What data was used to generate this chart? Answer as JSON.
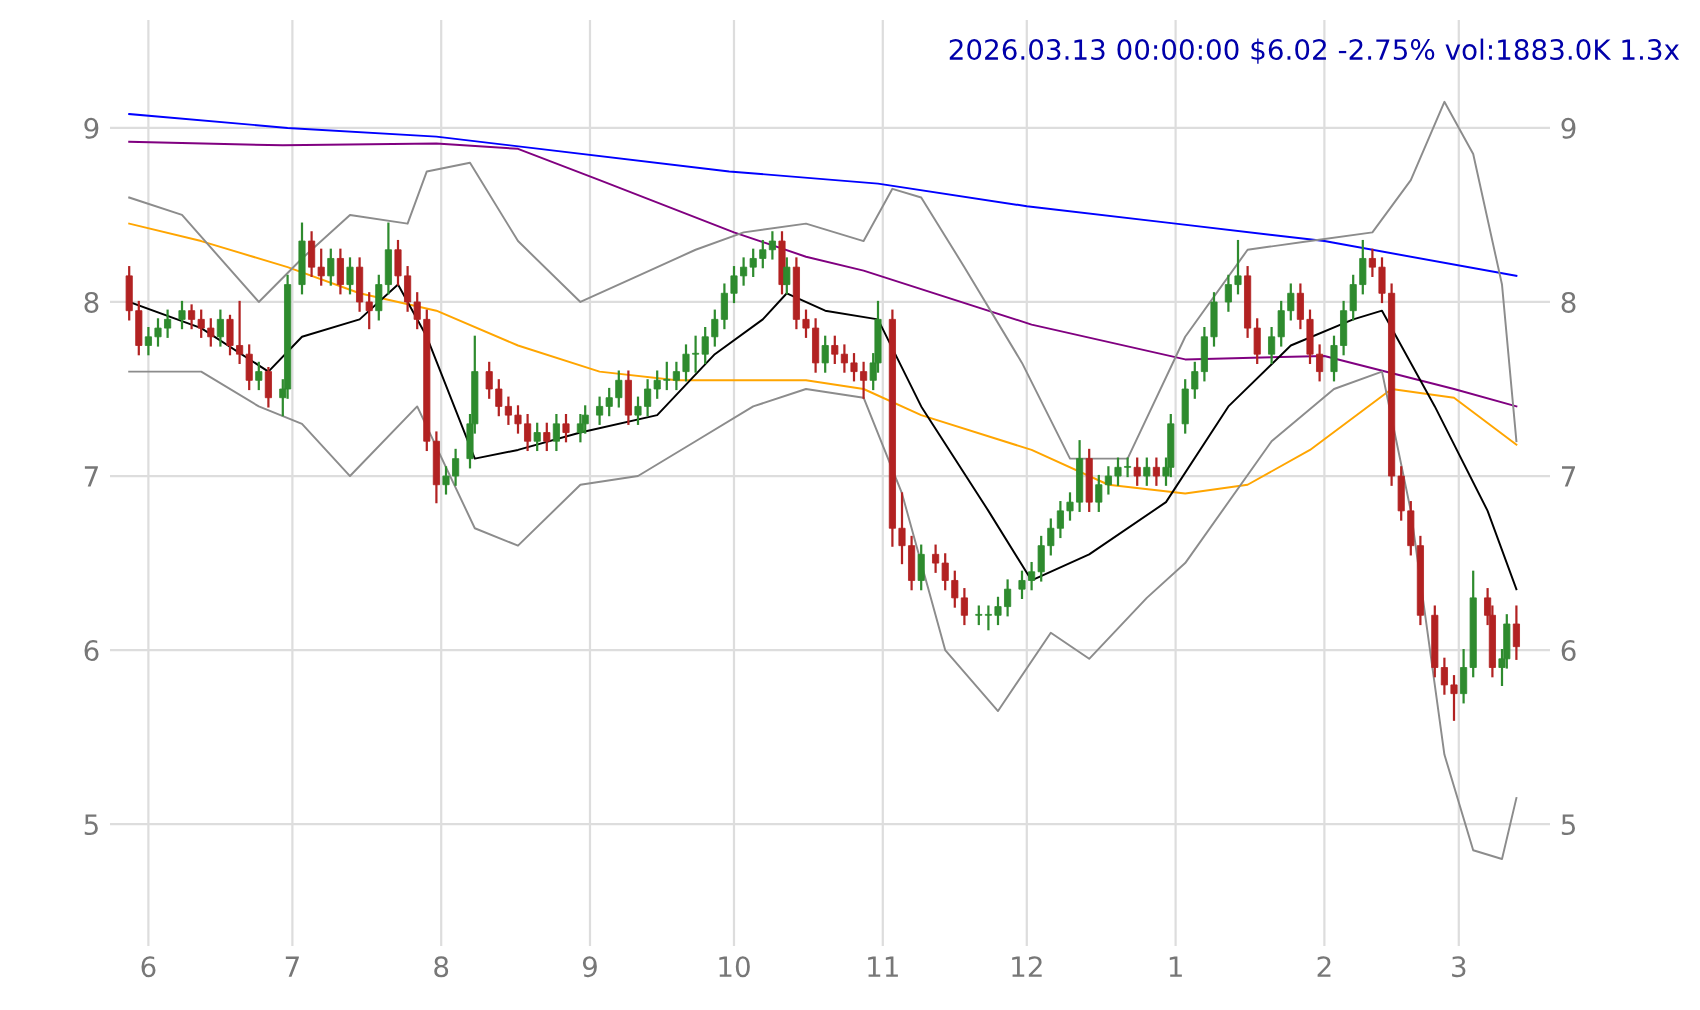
{
  "chart_data": {
    "type": "candlestick",
    "title": "2026.03.13 00:00:00 $6.02 -2.75% vol:1883.0K 1.3x",
    "x": [
      "2025-05-28",
      "2025-05-30",
      "2025-06-01",
      "2025-06-03",
      "2025-06-05",
      "2025-06-08",
      "2025-06-10",
      "2025-06-12",
      "2025-06-14",
      "2025-06-16",
      "2025-06-18",
      "2025-06-20",
      "2025-06-22",
      "2025-06-24",
      "2025-06-26",
      "2025-06-29",
      "2025-06-30",
      "2025-07-03",
      "2025-07-05",
      "2025-07-07",
      "2025-07-09",
      "2025-07-11",
      "2025-07-13",
      "2025-07-15",
      "2025-07-17",
      "2025-07-19",
      "2025-07-21",
      "2025-07-23",
      "2025-07-25",
      "2025-07-27",
      "2025-07-29",
      "2025-07-31",
      "2025-08-02",
      "2025-08-04",
      "2025-08-07",
      "2025-08-08",
      "2025-08-11",
      "2025-08-13",
      "2025-08-15",
      "2025-08-17",
      "2025-08-19",
      "2025-08-21",
      "2025-08-23",
      "2025-08-25",
      "2025-08-27",
      "2025-08-30",
      "2025-08-31",
      "2025-09-03",
      "2025-09-05",
      "2025-09-07",
      "2025-09-09",
      "2025-09-11",
      "2025-09-13",
      "2025-09-15",
      "2025-09-17",
      "2025-09-19",
      "2025-09-21",
      "2025-09-23",
      "2025-09-25",
      "2025-09-27",
      "2025-09-29",
      "2025-10-01",
      "2025-10-03",
      "2025-10-05",
      "2025-10-07",
      "2025-10-09",
      "2025-10-11",
      "2025-10-12",
      "2025-10-14",
      "2025-10-16",
      "2025-10-18",
      "2025-10-20",
      "2025-10-22",
      "2025-10-24",
      "2025-10-26",
      "2025-10-28",
      "2025-10-30",
      "2025-10-31",
      "2025-11-03",
      "2025-11-05",
      "2025-11-07",
      "2025-11-09",
      "2025-11-12",
      "2025-11-14",
      "2025-11-16",
      "2025-11-18",
      "2025-11-21",
      "2025-11-23",
      "2025-11-25",
      "2025-11-27",
      "2025-11-30",
      "2025-12-02",
      "2025-12-04",
      "2025-12-06",
      "2025-12-08",
      "2025-12-10",
      "2025-12-12",
      "2025-12-14",
      "2025-12-16",
      "2025-12-18",
      "2025-12-20",
      "2025-12-22",
      "2025-12-24",
      "2025-12-26",
      "2025-12-28",
      "2025-12-30",
      "2025-12-31",
      "2026-01-03",
      "2026-01-05",
      "2026-01-07",
      "2026-01-09",
      "2026-01-12",
      "2026-01-14",
      "2026-01-16",
      "2026-01-18",
      "2026-01-21",
      "2026-01-23",
      "2026-01-25",
      "2026-01-27",
      "2026-01-29",
      "2026-01-31",
      "2026-02-03",
      "2026-02-05",
      "2026-02-07",
      "2026-02-09",
      "2026-02-11",
      "2026-02-13",
      "2026-02-15",
      "2026-02-17",
      "2026-02-19",
      "2026-02-21",
      "2026-02-24",
      "2026-02-26",
      "2026-02-28",
      "2026-03-02",
      "2026-03-04",
      "2026-03-07",
      "2026-03-08",
      "2026-03-10",
      "2026-03-11",
      "2026-03-13"
    ],
    "ohlc": [
      [
        8.15,
        8.2,
        7.9,
        7.95
      ],
      [
        7.95,
        8.0,
        7.7,
        7.75
      ],
      [
        7.75,
        7.85,
        7.7,
        7.8
      ],
      [
        7.8,
        7.9,
        7.75,
        7.85
      ],
      [
        7.85,
        7.95,
        7.8,
        7.9
      ],
      [
        7.9,
        8.0,
        7.85,
        7.95
      ],
      [
        7.95,
        7.98,
        7.85,
        7.9
      ],
      [
        7.9,
        7.95,
        7.8,
        7.85
      ],
      [
        7.85,
        7.9,
        7.75,
        7.8
      ],
      [
        7.8,
        7.95,
        7.75,
        7.9
      ],
      [
        7.9,
        7.92,
        7.7,
        7.75
      ],
      [
        7.75,
        8.0,
        7.65,
        7.7
      ],
      [
        7.7,
        7.75,
        7.5,
        7.55
      ],
      [
        7.55,
        7.65,
        7.5,
        7.6
      ],
      [
        7.6,
        7.62,
        7.4,
        7.45
      ],
      [
        7.45,
        7.55,
        7.35,
        7.5
      ],
      [
        7.5,
        8.15,
        7.45,
        8.1
      ],
      [
        8.1,
        8.45,
        8.05,
        8.35
      ],
      [
        8.35,
        8.4,
        8.15,
        8.2
      ],
      [
        8.2,
        8.3,
        8.1,
        8.15
      ],
      [
        8.15,
        8.3,
        8.1,
        8.25
      ],
      [
        8.25,
        8.3,
        8.05,
        8.1
      ],
      [
        8.1,
        8.25,
        8.05,
        8.2
      ],
      [
        8.2,
        8.25,
        7.95,
        8.0
      ],
      [
        8.0,
        8.05,
        7.85,
        7.95
      ],
      [
        7.95,
        8.15,
        7.9,
        8.1
      ],
      [
        8.1,
        8.45,
        8.05,
        8.3
      ],
      [
        8.3,
        8.35,
        8.1,
        8.15
      ],
      [
        8.15,
        8.2,
        7.95,
        8.0
      ],
      [
        8.0,
        8.05,
        7.85,
        7.9
      ],
      [
        7.9,
        7.95,
        7.15,
        7.2
      ],
      [
        7.2,
        7.25,
        6.85,
        6.95
      ],
      [
        6.95,
        7.05,
        6.9,
        7.0
      ],
      [
        7.0,
        7.15,
        6.95,
        7.1
      ],
      [
        7.1,
        7.35,
        7.05,
        7.3
      ],
      [
        7.3,
        7.8,
        7.25,
        7.6
      ],
      [
        7.6,
        7.65,
        7.45,
        7.5
      ],
      [
        7.5,
        7.55,
        7.35,
        7.4
      ],
      [
        7.4,
        7.45,
        7.3,
        7.35
      ],
      [
        7.35,
        7.4,
        7.25,
        7.3
      ],
      [
        7.3,
        7.35,
        7.15,
        7.2
      ],
      [
        7.2,
        7.3,
        7.15,
        7.25
      ],
      [
        7.25,
        7.3,
        7.15,
        7.2
      ],
      [
        7.2,
        7.35,
        7.15,
        7.3
      ],
      [
        7.3,
        7.35,
        7.2,
        7.25
      ],
      [
        7.25,
        7.35,
        7.2,
        7.3
      ],
      [
        7.3,
        7.4,
        7.25,
        7.35
      ],
      [
        7.35,
        7.45,
        7.3,
        7.4
      ],
      [
        7.4,
        7.5,
        7.35,
        7.45
      ],
      [
        7.45,
        7.6,
        7.4,
        7.55
      ],
      [
        7.55,
        7.6,
        7.3,
        7.35
      ],
      [
        7.35,
        7.45,
        7.3,
        7.4
      ],
      [
        7.4,
        7.55,
        7.35,
        7.5
      ],
      [
        7.5,
        7.6,
        7.45,
        7.55
      ],
      [
        7.55,
        7.65,
        7.5,
        7.55
      ],
      [
        7.55,
        7.65,
        7.5,
        7.6
      ],
      [
        7.6,
        7.75,
        7.55,
        7.7
      ],
      [
        7.7,
        7.8,
        7.6,
        7.7
      ],
      [
        7.7,
        7.85,
        7.65,
        7.8
      ],
      [
        7.8,
        7.95,
        7.75,
        7.9
      ],
      [
        7.9,
        8.1,
        7.85,
        8.05
      ],
      [
        8.05,
        8.2,
        8.0,
        8.15
      ],
      [
        8.15,
        8.25,
        8.1,
        8.2
      ],
      [
        8.2,
        8.3,
        8.15,
        8.25
      ],
      [
        8.25,
        8.35,
        8.2,
        8.3
      ],
      [
        8.3,
        8.4,
        8.25,
        8.35
      ],
      [
        8.35,
        8.4,
        8.05,
        8.1
      ],
      [
        8.1,
        8.25,
        8.05,
        8.2
      ],
      [
        8.2,
        8.25,
        7.85,
        7.9
      ],
      [
        7.9,
        7.95,
        7.8,
        7.85
      ],
      [
        7.85,
        7.9,
        7.6,
        7.65
      ],
      [
        7.65,
        7.8,
        7.6,
        7.75
      ],
      [
        7.75,
        7.8,
        7.65,
        7.7
      ],
      [
        7.7,
        7.75,
        7.6,
        7.65
      ],
      [
        7.65,
        7.7,
        7.55,
        7.6
      ],
      [
        7.6,
        7.65,
        7.45,
        7.55
      ],
      [
        7.55,
        7.7,
        7.5,
        7.65
      ],
      [
        7.65,
        8.0,
        7.6,
        7.9
      ],
      [
        7.9,
        7.95,
        6.6,
        6.7
      ],
      [
        6.7,
        6.9,
        6.5,
        6.6
      ],
      [
        6.6,
        6.65,
        6.35,
        6.4
      ],
      [
        6.4,
        6.6,
        6.35,
        6.55
      ],
      [
        6.55,
        6.6,
        6.45,
        6.5
      ],
      [
        6.5,
        6.55,
        6.35,
        6.4
      ],
      [
        6.4,
        6.45,
        6.25,
        6.3
      ],
      [
        6.3,
        6.35,
        6.15,
        6.2
      ],
      [
        6.2,
        6.25,
        6.15,
        6.2
      ],
      [
        6.2,
        6.25,
        6.12,
        6.2
      ],
      [
        6.2,
        6.3,
        6.15,
        6.25
      ],
      [
        6.25,
        6.4,
        6.2,
        6.35
      ],
      [
        6.35,
        6.45,
        6.3,
        6.4
      ],
      [
        6.4,
        6.5,
        6.35,
        6.45
      ],
      [
        6.45,
        6.65,
        6.4,
        6.6
      ],
      [
        6.6,
        6.75,
        6.55,
        6.7
      ],
      [
        6.7,
        6.85,
        6.65,
        6.8
      ],
      [
        6.8,
        6.9,
        6.75,
        6.85
      ],
      [
        6.85,
        7.2,
        6.8,
        7.1
      ],
      [
        7.1,
        7.15,
        6.8,
        6.85
      ],
      [
        6.85,
        7.0,
        6.8,
        6.95
      ],
      [
        6.95,
        7.05,
        6.9,
        7.0
      ],
      [
        7.0,
        7.1,
        6.95,
        7.05
      ],
      [
        7.05,
        7.1,
        7.0,
        7.05
      ],
      [
        7.05,
        7.1,
        6.95,
        7.0
      ],
      [
        7.0,
        7.1,
        6.95,
        7.05
      ],
      [
        7.05,
        7.1,
        6.95,
        7.0
      ],
      [
        7.0,
        7.1,
        6.95,
        7.05
      ],
      [
        7.05,
        7.35,
        7.0,
        7.3
      ],
      [
        7.3,
        7.55,
        7.25,
        7.5
      ],
      [
        7.5,
        7.65,
        7.45,
        7.6
      ],
      [
        7.6,
        7.85,
        7.55,
        7.8
      ],
      [
        7.8,
        8.05,
        7.75,
        8.0
      ],
      [
        8.0,
        8.15,
        7.95,
        8.1
      ],
      [
        8.1,
        8.35,
        8.05,
        8.15
      ],
      [
        8.15,
        8.2,
        7.8,
        7.85
      ],
      [
        7.85,
        7.9,
        7.65,
        7.7
      ],
      [
        7.7,
        7.85,
        7.65,
        7.8
      ],
      [
        7.8,
        8.0,
        7.75,
        7.95
      ],
      [
        7.95,
        8.1,
        7.9,
        8.05
      ],
      [
        8.05,
        8.1,
        7.85,
        7.9
      ],
      [
        7.9,
        7.95,
        7.65,
        7.7
      ],
      [
        7.7,
        7.75,
        7.55,
        7.6
      ],
      [
        7.6,
        7.8,
        7.55,
        7.75
      ],
      [
        7.75,
        8.0,
        7.7,
        7.95
      ],
      [
        7.95,
        8.15,
        7.9,
        8.1
      ],
      [
        8.1,
        8.35,
        8.05,
        8.25
      ],
      [
        8.25,
        8.3,
        8.15,
        8.2
      ],
      [
        8.2,
        8.25,
        8.0,
        8.05
      ],
      [
        8.05,
        8.1,
        6.95,
        7.0
      ],
      [
        7.0,
        7.05,
        6.75,
        6.8
      ],
      [
        6.8,
        6.85,
        6.55,
        6.6
      ],
      [
        6.6,
        6.65,
        6.15,
        6.2
      ],
      [
        6.2,
        6.25,
        5.85,
        5.9
      ],
      [
        5.9,
        5.95,
        5.75,
        5.8
      ],
      [
        5.8,
        5.85,
        5.6,
        5.75
      ],
      [
        5.75,
        6.0,
        5.7,
        5.9
      ],
      [
        5.9,
        6.45,
        5.85,
        6.3
      ],
      [
        6.3,
        6.35,
        6.15,
        6.2
      ],
      [
        6.2,
        6.25,
        5.85,
        5.9
      ],
      [
        5.9,
        6.0,
        5.8,
        5.95
      ],
      [
        5.95,
        6.2,
        5.9,
        6.15
      ],
      [
        6.15,
        6.25,
        5.95,
        6.02
      ]
    ],
    "colors": [
      "#b22222",
      "#b22222",
      "#2e8b2e",
      "#2e8b2e",
      "#2e8b2e",
      "#2e8b2e",
      "#b22222",
      "#b22222",
      "#b22222",
      "#2e8b2e",
      "#b22222",
      "#b22222",
      "#b22222",
      "#2e8b2e",
      "#b22222",
      "#2e8b2e",
      "#2e8b2e",
      "#2e8b2e",
      "#b22222",
      "#b22222",
      "#2e8b2e",
      "#b22222",
      "#2e8b2e",
      "#b22222",
      "#b22222",
      "#2e8b2e",
      "#2e8b2e",
      "#b22222",
      "#b22222",
      "#b22222",
      "#b22222",
      "#b22222",
      "#2e8b2e",
      "#2e8b2e",
      "#2e8b2e",
      "#2e8b2e",
      "#b22222",
      "#b22222",
      "#b22222",
      "#b22222",
      "#b22222",
      "#2e8b2e",
      "#b22222",
      "#2e8b2e",
      "#b22222",
      "#2e8b2e",
      "#2e8b2e",
      "#2e8b2e",
      "#2e8b2e",
      "#2e8b2e",
      "#b22222",
      "#2e8b2e",
      "#2e8b2e",
      "#2e8b2e",
      "#2e8b2e",
      "#2e8b2e",
      "#2e8b2e",
      "#2e8b2e",
      "#2e8b2e",
      "#2e8b2e",
      "#2e8b2e",
      "#2e8b2e",
      "#2e8b2e",
      "#2e8b2e",
      "#2e8b2e",
      "#2e8b2e",
      "#b22222",
      "#2e8b2e",
      "#b22222",
      "#b22222",
      "#b22222",
      "#2e8b2e",
      "#b22222",
      "#b22222",
      "#b22222",
      "#b22222",
      "#2e8b2e",
      "#2e8b2e",
      "#b22222",
      "#b22222",
      "#b22222",
      "#2e8b2e",
      "#b22222",
      "#b22222",
      "#b22222",
      "#b22222",
      "#2e8b2e",
      "#2e8b2e",
      "#2e8b2e",
      "#2e8b2e",
      "#2e8b2e",
      "#2e8b2e",
      "#2e8b2e",
      "#2e8b2e",
      "#2e8b2e",
      "#2e8b2e",
      "#2e8b2e",
      "#b22222",
      "#2e8b2e",
      "#2e8b2e",
      "#2e8b2e",
      "#2e8b2e",
      "#b22222",
      "#2e8b2e",
      "#b22222",
      "#2e8b2e",
      "#2e8b2e",
      "#2e8b2e",
      "#2e8b2e",
      "#2e8b2e",
      "#2e8b2e",
      "#2e8b2e",
      "#2e8b2e",
      "#b22222",
      "#b22222",
      "#2e8b2e",
      "#2e8b2e",
      "#2e8b2e",
      "#b22222",
      "#b22222",
      "#b22222",
      "#2e8b2e",
      "#2e8b2e",
      "#2e8b2e",
      "#2e8b2e",
      "#b22222",
      "#b22222",
      "#b22222",
      "#b22222",
      "#b22222",
      "#b22222",
      "#b22222",
      "#b22222",
      "#b22222",
      "#2e8b2e",
      "#2e8b2e",
      "#b22222",
      "#b22222",
      "#2e8b2e",
      "#2e8b2e",
      "#b22222"
    ],
    "series": [
      {
        "type": "line",
        "color": "#0000ff",
        "x": [
          "2025-05-28",
          "2025-06-30",
          "2025-07-31",
          "2025-09-30",
          "2025-10-31",
          "2025-12-01",
          "2026-01-01",
          "2026-02-01",
          "2026-03-13"
        ],
        "values": [
          9.08,
          9.0,
          8.95,
          8.75,
          8.68,
          8.55,
          8.45,
          8.35,
          8.15
        ]
      },
      {
        "type": "line",
        "color": "#800080",
        "x": [
          "2025-05-28",
          "2025-06-29",
          "2025-07-31",
          "2025-08-17",
          "2025-09-03",
          "2025-10-01",
          "2025-10-16",
          "2025-10-28",
          "2025-12-02",
          "2026-01-03",
          "2026-02-01",
          "2026-02-28",
          "2026-03-13"
        ],
        "values": [
          8.92,
          8.9,
          8.91,
          8.88,
          8.7,
          8.4,
          8.26,
          8.18,
          7.87,
          7.67,
          7.69,
          7.5,
          7.4
        ]
      },
      {
        "type": "line",
        "color": "#ffa500",
        "x": [
          "2025-05-28",
          "2025-06-12",
          "2025-06-30",
          "2025-07-15",
          "2025-07-31",
          "2025-08-17",
          "2025-09-03",
          "2025-09-19",
          "2025-10-01",
          "2025-10-16",
          "2025-10-28",
          "2025-11-09",
          "2025-12-02",
          "2025-12-18",
          "2026-01-03",
          "2026-01-16",
          "2026-01-29",
          "2026-02-15",
          "2026-02-28",
          "2026-03-13"
        ],
        "values": [
          8.45,
          8.35,
          8.2,
          8.05,
          7.95,
          7.75,
          7.6,
          7.55,
          7.55,
          7.55,
          7.5,
          7.35,
          7.15,
          6.95,
          6.9,
          6.95,
          7.15,
          7.5,
          7.45,
          7.18
        ]
      },
      {
        "type": "line",
        "color": "#000000",
        "x": [
          "2025-05-28",
          "2025-06-12",
          "2025-06-26",
          "2025-07-03",
          "2025-07-15",
          "2025-07-23",
          "2025-07-29",
          "2025-08-08",
          "2025-08-17",
          "2025-08-30",
          "2025-09-15",
          "2025-09-27",
          "2025-10-07",
          "2025-10-12",
          "2025-10-20",
          "2025-10-31",
          "2025-11-09",
          "2025-11-23",
          "2025-12-02",
          "2025-12-14",
          "2025-12-30",
          "2026-01-12",
          "2026-01-25",
          "2026-02-07",
          "2026-02-13",
          "2026-02-24",
          "2026-03-07",
          "2026-03-13"
        ],
        "values": [
          8.0,
          7.85,
          7.6,
          7.8,
          7.9,
          8.1,
          7.8,
          7.1,
          7.15,
          7.25,
          7.35,
          7.7,
          7.9,
          8.05,
          7.95,
          7.9,
          7.4,
          6.8,
          6.4,
          6.55,
          6.85,
          7.4,
          7.75,
          7.9,
          7.95,
          7.4,
          6.8,
          6.35
        ]
      },
      {
        "type": "line",
        "color": "#8c8c8c",
        "x": [
          "2025-05-28",
          "2025-06-08",
          "2025-06-24",
          "2025-07-03",
          "2025-07-13",
          "2025-07-25",
          "2025-07-29",
          "2025-08-07",
          "2025-08-17",
          "2025-08-30",
          "2025-09-11",
          "2025-09-23",
          "2025-10-03",
          "2025-10-16",
          "2025-10-28",
          "2025-11-03",
          "2025-11-09",
          "2025-11-18",
          "2025-11-30",
          "2025-12-10",
          "2025-12-22",
          "2026-01-03",
          "2026-01-16",
          "2026-01-29",
          "2026-02-11",
          "2026-02-19",
          "2026-02-26",
          "2026-03-04",
          "2026-03-10",
          "2026-03-13"
        ],
        "values": [
          8.6,
          8.5,
          8.0,
          8.25,
          8.5,
          8.45,
          8.75,
          8.8,
          8.35,
          8.0,
          8.15,
          8.3,
          8.4,
          8.45,
          8.35,
          8.65,
          8.6,
          8.2,
          7.65,
          7.1,
          7.1,
          7.8,
          8.3,
          8.35,
          8.4,
          8.7,
          9.15,
          8.85,
          8.1,
          7.2
        ]
      },
      {
        "type": "line",
        "color": "#8c8c8c",
        "x": [
          "2025-05-28",
          "2025-06-12",
          "2025-06-24",
          "2025-07-03",
          "2025-07-13",
          "2025-07-27",
          "2025-08-08",
          "2025-08-17",
          "2025-08-30",
          "2025-09-11",
          "2025-09-23",
          "2025-10-05",
          "2025-10-16",
          "2025-10-28",
          "2025-11-05",
          "2025-11-14",
          "2025-11-25",
          "2025-12-06",
          "2025-12-14",
          "2025-12-26",
          "2026-01-03",
          "2026-01-21",
          "2026-02-03",
          "2026-02-13",
          "2026-02-19",
          "2026-02-26",
          "2026-03-04",
          "2026-03-10",
          "2026-03-13"
        ],
        "values": [
          7.6,
          7.6,
          7.4,
          7.3,
          7.0,
          7.4,
          6.7,
          6.6,
          6.95,
          7.0,
          7.2,
          7.4,
          7.5,
          7.45,
          6.9,
          6.0,
          5.65,
          6.1,
          5.95,
          6.3,
          6.5,
          7.2,
          7.5,
          7.6,
          6.8,
          5.4,
          4.85,
          4.8,
          5.15
        ]
      }
    ],
    "xlim": [
      "2025-05-24",
      "2026-03-20"
    ],
    "xticks": [
      {
        "value": "2025-06-01",
        "label": "6"
      },
      {
        "value": "2025-07-01",
        "label": "7"
      },
      {
        "value": "2025-08-01",
        "label": "8"
      },
      {
        "value": "2025-09-01",
        "label": "9"
      },
      {
        "value": "2025-10-01",
        "label": "10"
      },
      {
        "value": "2025-11-01",
        "label": "11"
      },
      {
        "value": "2025-12-01",
        "label": "12"
      },
      {
        "value": "2026-01-01",
        "label": "1"
      },
      {
        "value": "2026-02-01",
        "label": "2"
      },
      {
        "value": "2026-03-01",
        "label": "3"
      }
    ],
    "ylim": [
      4.3,
      9.62
    ],
    "yticks": [
      5,
      6,
      7,
      8,
      9
    ],
    "y2lim": [
      4.3,
      9.62
    ],
    "y2ticks": [
      5,
      6,
      7,
      8,
      9
    ],
    "grid": true
  }
}
